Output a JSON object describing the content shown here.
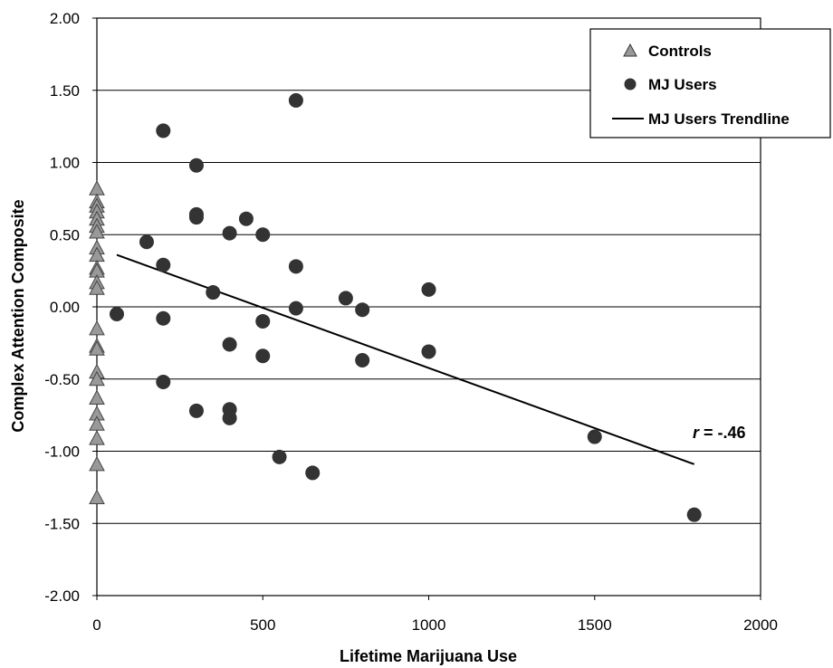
{
  "chart_data": {
    "type": "scatter",
    "xlabel": "Lifetime Marijuana Use",
    "ylabel": "Complex Attention Composite",
    "xlim": [
      0,
      2000
    ],
    "ylim": [
      -2.0,
      2.0
    ],
    "x_ticks": [
      0,
      500,
      1000,
      1500,
      2000
    ],
    "y_ticks": [
      2.0,
      1.5,
      1.0,
      0.5,
      0.0,
      -0.5,
      -1.0,
      -1.5,
      -2.0
    ],
    "x_tick_labels": [
      "0",
      "500",
      "1000",
      "1500",
      "2000"
    ],
    "y_tick_labels": [
      "2.00",
      "1.50",
      "1.00",
      "0.50",
      "0.00",
      "-0.50",
      "-1.00",
      "-1.50",
      "-2.00"
    ],
    "grid": "horizontal",
    "legend_position": "top-right",
    "legend": [
      "Controls",
      "MJ Users",
      "MJ Users Trendline"
    ],
    "annotation_prefix": "r",
    "annotation_value": " = -.46",
    "series": [
      {
        "name": "Controls",
        "marker": "triangle",
        "color": "#999999",
        "x": [
          0,
          0,
          0,
          0,
          0,
          0,
          0,
          0,
          0,
          0,
          0,
          0,
          0,
          0,
          0,
          0,
          0,
          0,
          0,
          0,
          0,
          0,
          0,
          0
        ],
        "y": [
          0.82,
          0.73,
          0.7,
          0.66,
          0.61,
          0.56,
          0.52,
          0.41,
          0.36,
          0.27,
          0.25,
          0.17,
          0.13,
          -0.15,
          -0.27,
          -0.29,
          -0.45,
          -0.5,
          -0.63,
          -0.74,
          -0.81,
          -0.91,
          -1.09,
          -1.32
        ]
      },
      {
        "name": "MJ Users",
        "marker": "circle",
        "color": "#333333",
        "x": [
          60,
          150,
          200,
          200,
          200,
          200,
          300,
          300,
          300,
          300,
          350,
          400,
          400,
          400,
          400,
          450,
          500,
          500,
          500,
          550,
          600,
          600,
          600,
          650,
          750,
          800,
          800,
          1000,
          1000,
          1500,
          1800
        ],
        "y": [
          -0.05,
          0.45,
          1.22,
          0.29,
          -0.08,
          -0.52,
          0.98,
          0.64,
          0.62,
          -0.72,
          0.1,
          0.51,
          -0.26,
          -0.71,
          -0.77,
          0.61,
          0.5,
          -0.1,
          -0.34,
          -1.04,
          1.43,
          0.28,
          -0.01,
          -1.15,
          0.06,
          -0.02,
          -0.37,
          0.12,
          -0.31,
          -0.9,
          -1.44
        ]
      },
      {
        "name": "MJ Users Trendline",
        "marker": "line",
        "color": "#000000",
        "x": [
          60,
          1800
        ],
        "y": [
          0.36,
          -1.09
        ]
      }
    ]
  }
}
